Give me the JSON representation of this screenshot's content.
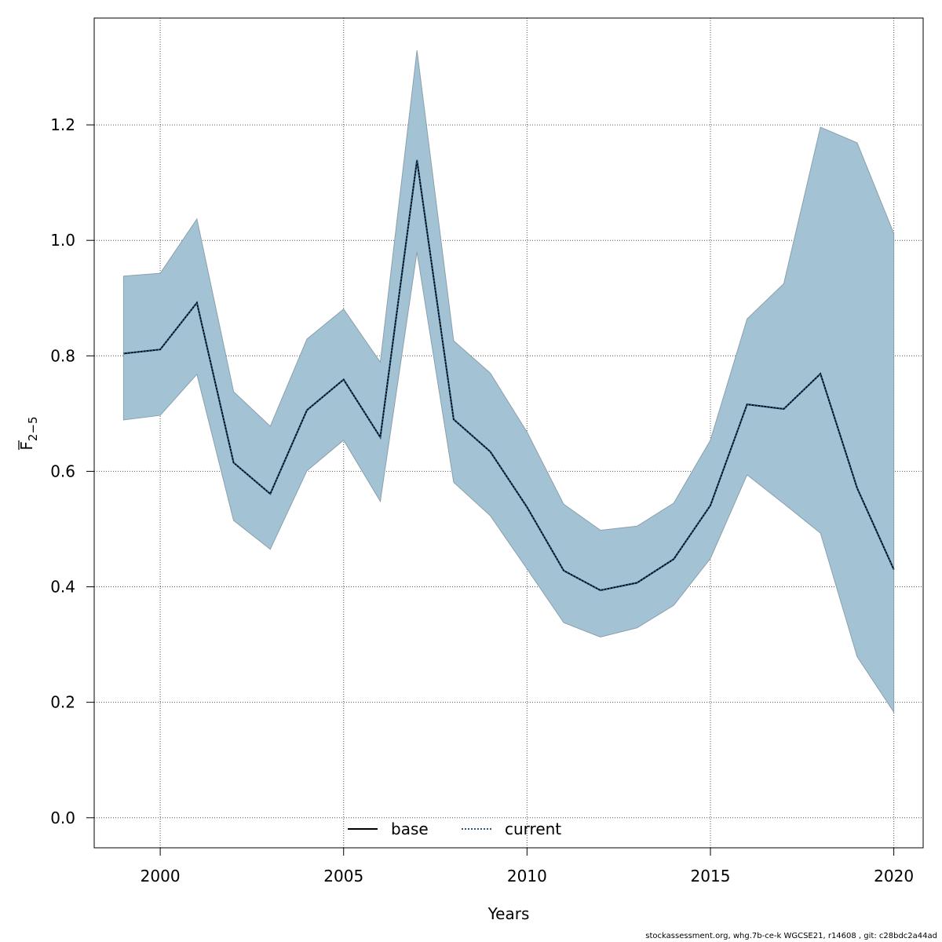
{
  "chart_data": {
    "type": "line",
    "xlabel": "Years",
    "ylabel": {
      "main": "F",
      "subscript": "2−5"
    },
    "xlim": [
      1998.2,
      2020.8
    ],
    "ylim": [
      -0.052,
      1.385
    ],
    "x_ticks": [
      2000,
      2005,
      2010,
      2015,
      2020
    ],
    "y_ticks": [
      0.0,
      0.2,
      0.4,
      0.6,
      0.8,
      1.0,
      1.2
    ],
    "y_tick_labels": [
      "0.0",
      "0.2",
      "0.4",
      "0.6",
      "0.8",
      "1.0",
      "1.2"
    ],
    "grid": true,
    "legend_position": "bottom-center",
    "x": [
      1999,
      2000,
      2001,
      2002,
      2003,
      2004,
      2005,
      2006,
      2007,
      2008,
      2009,
      2010,
      2011,
      2012,
      2013,
      2014,
      2015,
      2016,
      2017,
      2018,
      2019,
      2020
    ],
    "band": {
      "color": "#a3c3d4",
      "edge_color": "#8aa0ad",
      "lower": [
        0.689,
        0.697,
        0.768,
        0.515,
        0.465,
        0.601,
        0.654,
        0.548,
        0.98,
        0.581,
        0.523,
        0.431,
        0.338,
        0.313,
        0.329,
        0.368,
        0.449,
        0.594,
        0.544,
        0.493,
        0.279,
        0.183
      ],
      "upper": [
        0.938,
        0.943,
        1.037,
        0.738,
        0.678,
        0.829,
        0.881,
        0.789,
        1.329,
        0.826,
        0.77,
        0.668,
        0.543,
        0.498,
        0.505,
        0.545,
        0.654,
        0.864,
        0.925,
        1.196,
        1.169,
        1.012
      ]
    },
    "series": [
      {
        "name": "base",
        "color": "#000000",
        "dash": "solid",
        "values": [
          0.804,
          0.811,
          0.892,
          0.615,
          0.561,
          0.706,
          0.759,
          0.659,
          1.139,
          0.69,
          0.634,
          0.538,
          0.428,
          0.394,
          0.407,
          0.448,
          0.541,
          0.716,
          0.708,
          0.769,
          0.571,
          0.43
        ]
      },
      {
        "name": "current",
        "color": "#1f5b8a",
        "dash": "dotted",
        "values": [
          0.804,
          0.811,
          0.892,
          0.615,
          0.561,
          0.706,
          0.759,
          0.659,
          1.139,
          0.69,
          0.634,
          0.538,
          0.428,
          0.394,
          0.407,
          0.448,
          0.541,
          0.716,
          0.708,
          0.769,
          0.571,
          0.43
        ]
      }
    ]
  },
  "footer_text": "stockassessment.org, whg.7b-ce-k  WGCSE21, r14608 , git: c28bdc2a44ad"
}
